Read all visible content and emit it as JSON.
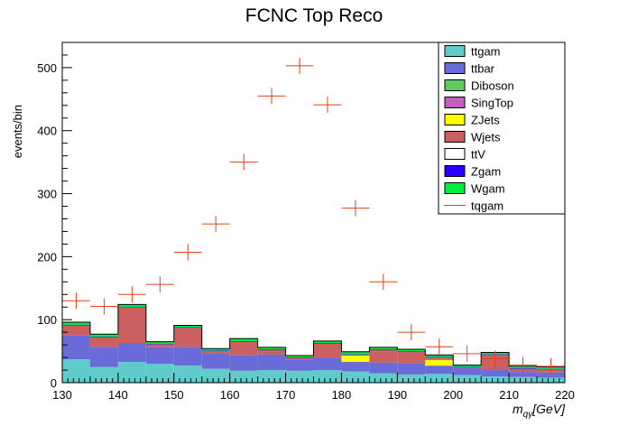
{
  "chart_data": {
    "type": "bar",
    "stacked": true,
    "title": "FCNC Top Reco",
    "xlabel": "m_{qγ}[GeV]",
    "xlabel_main": "m",
    "xlabel_sub": "qγ",
    "xlabel_unit": "[GeV]",
    "ylabel": "events/bin",
    "xlim": [
      130,
      220
    ],
    "ylim": [
      0,
      540
    ],
    "xticks": [
      130,
      140,
      150,
      160,
      170,
      180,
      190,
      200,
      210,
      220
    ],
    "yticks": [
      0,
      100,
      200,
      300,
      400,
      500
    ],
    "bin_edges": [
      130,
      135,
      140,
      145,
      150,
      155,
      160,
      165,
      170,
      175,
      180,
      185,
      190,
      195,
      200,
      205,
      210,
      215,
      220
    ],
    "series": [
      {
        "name": "ttgam",
        "color": "#5fcbcb",
        "values": [
          37,
          25,
          33,
          30,
          27,
          22,
          19,
          20,
          19,
          20,
          18,
          15,
          13,
          14,
          12,
          10,
          9,
          8
        ]
      },
      {
        "name": "ttbar",
        "color": "#6a6ad8",
        "values": [
          38,
          32,
          30,
          27,
          30,
          25,
          25,
          25,
          18,
          20,
          15,
          17,
          18,
          13,
          11,
          10,
          8,
          8
        ]
      },
      {
        "name": "Diboson",
        "color": "#5fcc5f",
        "values": [
          0,
          0,
          0,
          0,
          0,
          0,
          0,
          0,
          0,
          0,
          0,
          0,
          0,
          0,
          0,
          0,
          0,
          0
        ]
      },
      {
        "name": "SingTop",
        "color": "#c25fc2",
        "values": [
          0,
          0,
          0,
          0,
          0,
          0,
          0,
          0,
          0,
          0,
          0,
          0,
          0,
          0,
          0,
          0,
          0,
          0
        ]
      },
      {
        "name": "ZJets",
        "color": "#ffff00",
        "values": [
          0,
          0,
          0,
          0,
          0,
          0,
          0,
          0,
          0,
          0,
          10,
          0,
          0,
          9,
          0,
          0,
          0,
          0
        ]
      },
      {
        "name": "Wjets",
        "color": "#cc5f5f",
        "values": [
          16,
          15,
          56,
          4,
          30,
          3,
          21,
          7,
          2,
          22,
          1,
          20,
          18,
          4,
          1,
          24,
          5,
          5
        ]
      },
      {
        "name": "ttV",
        "color": "#ffffff",
        "values": [
          0,
          0,
          0,
          0,
          0,
          0,
          0,
          0,
          0,
          0,
          0,
          0,
          0,
          0,
          0,
          0,
          0,
          0
        ]
      },
      {
        "name": "Zgam",
        "color": "#2800ff",
        "values": [
          1,
          1,
          1,
          1,
          1,
          1,
          1,
          1,
          1,
          1,
          1,
          1,
          1,
          1,
          1,
          1,
          1,
          1
        ]
      },
      {
        "name": "Wgam",
        "color": "#00ee3c",
        "values": [
          4,
          4,
          4,
          3,
          3,
          3,
          4,
          3,
          3,
          3,
          4,
          3,
          3,
          3,
          3,
          3,
          3,
          3
        ]
      }
    ],
    "signal": {
      "name": "tqgam",
      "color": "#e8401c",
      "values": [
        130,
        121,
        140,
        156,
        207,
        252,
        350,
        455,
        503,
        441,
        277,
        160,
        80,
        57,
        46,
        38,
        28,
        26
      ]
    },
    "legend_entries": [
      "ttgam",
      "ttbar",
      "Diboson",
      "SingTop",
      "ZJets",
      "Wjets",
      "ttV",
      "Zgam",
      "Wgam",
      "tqgam"
    ],
    "legend_position": "top-right"
  }
}
